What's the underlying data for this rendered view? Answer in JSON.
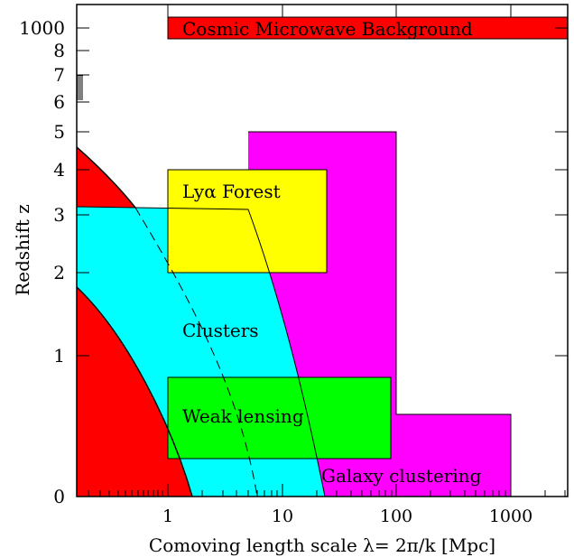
{
  "figure": {
    "x_axis_label": "Comoving length scale λ= 2π/k [Mpc]",
    "y_axis_label": "Redshift z",
    "x_ticks": [
      "1",
      "10",
      "100",
      "1000"
    ],
    "y_ticks": [
      "1000",
      "8",
      "7",
      "6",
      "5",
      "4",
      "3",
      "2",
      "1",
      "0"
    ]
  },
  "regions": {
    "cmb": {
      "label": "Cosmic Microwave Background",
      "color": "#ff0000"
    },
    "galaxy_clustering": {
      "label": "Galaxy clustering",
      "color": "#ff00ff"
    },
    "lya_forest": {
      "label": "Lyα Forest",
      "color": "#ffff00"
    },
    "clusters": {
      "label": "Clusters",
      "color": "#00ffff"
    },
    "weak_lensing": {
      "label": "Weak lensing",
      "color": "#00ff00"
    },
    "nonlinear": {
      "color": "#ff0000"
    }
  }
}
